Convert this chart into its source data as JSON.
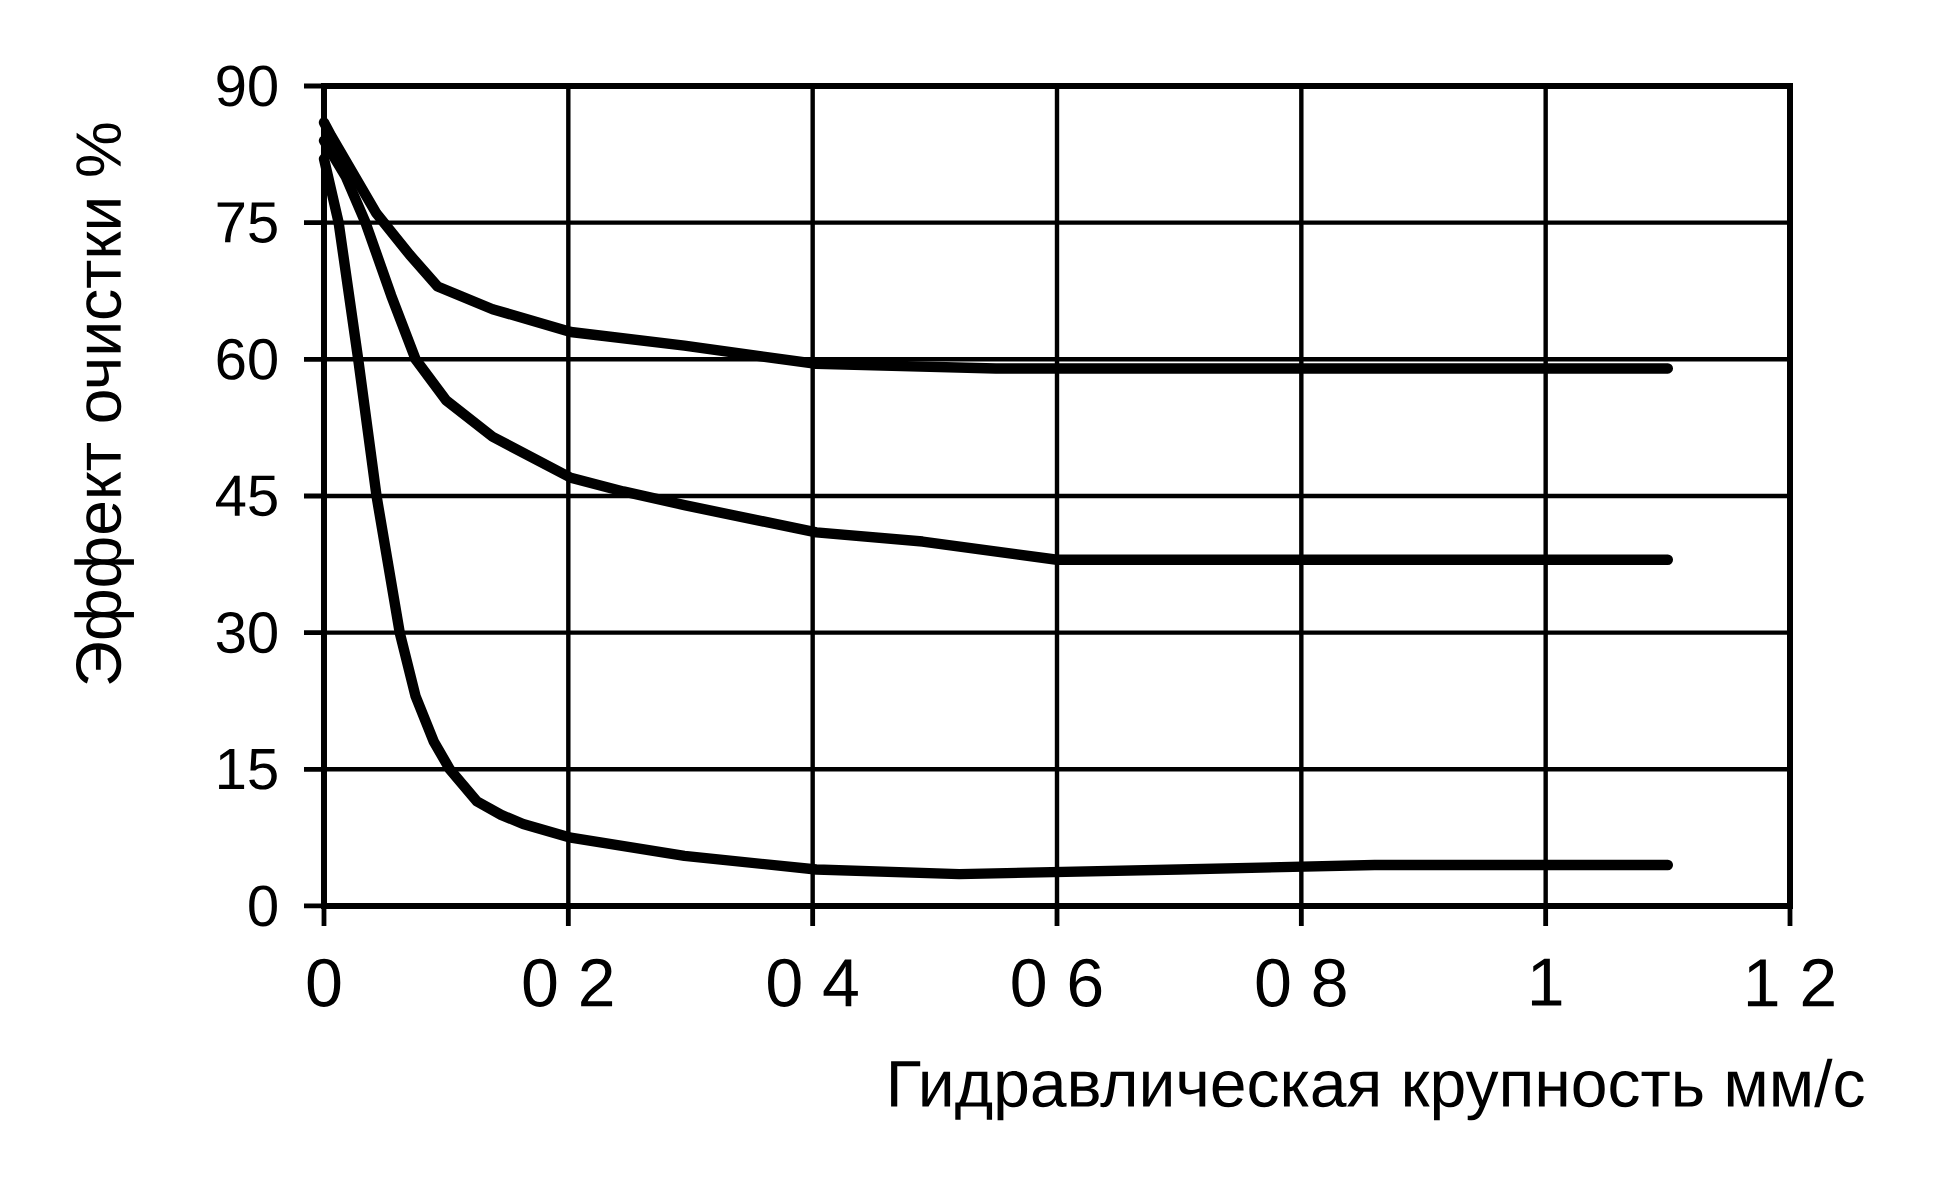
{
  "chart_data": {
    "type": "line",
    "xlabel": "Гидравлическая крупность мм/с",
    "ylabel": "Эффект очистки %",
    "xlim": [
      0,
      1.2
    ],
    "ylim": [
      0,
      90
    ],
    "xticks": [
      0,
      {
        "value": 0.2,
        "label": "0 2"
      },
      {
        "value": 0.4,
        "label": "0 4"
      },
      {
        "value": 0.6,
        "label": "0 6"
      },
      {
        "value": 0.8,
        "label": "0 8"
      },
      1,
      {
        "value": 1.2,
        "label": "1 2"
      }
    ],
    "yticks": [
      0,
      15,
      30,
      45,
      60,
      75,
      90
    ],
    "grid": true,
    "marker": "none",
    "line_style": "solid",
    "series": [
      {
        "color": "#000000",
        "x": [
          0,
          0.006,
          0.043,
          0.07,
          0.093,
          0.138,
          0.202,
          0.295,
          0.403,
          0.55,
          0.7,
          0.85,
          1.0,
          1.1
        ],
        "values": [
          86,
          84.5,
          76,
          71.5,
          68,
          65.5,
          63,
          61.5,
          59.5,
          59,
          59,
          59,
          59,
          59
        ]
      },
      {
        "color": "#000000",
        "x": [
          0,
          0.018,
          0.034,
          0.055,
          0.075,
          0.1,
          0.138,
          0.202,
          0.245,
          0.295,
          0.403,
          0.49,
          0.6,
          0.8,
          1.0,
          1.1
        ],
        "values": [
          84,
          80,
          75,
          67,
          60,
          55.5,
          51.5,
          47,
          45.5,
          44,
          41,
          40,
          38,
          38,
          38,
          38
        ]
      },
      {
        "color": "#000000",
        "x": [
          0,
          0.012,
          0.028,
          0.043,
          0.062,
          0.075,
          0.09,
          0.103,
          0.125,
          0.145,
          0.163,
          0.202,
          0.295,
          0.403,
          0.52,
          0.7,
          0.86,
          1.1
        ],
        "values": [
          82,
          75,
          60,
          45,
          30,
          23,
          18,
          15,
          11.5,
          10,
          9,
          7.5,
          5.5,
          4,
          3.5,
          4,
          4.5,
          4.5
        ]
      }
    ]
  }
}
